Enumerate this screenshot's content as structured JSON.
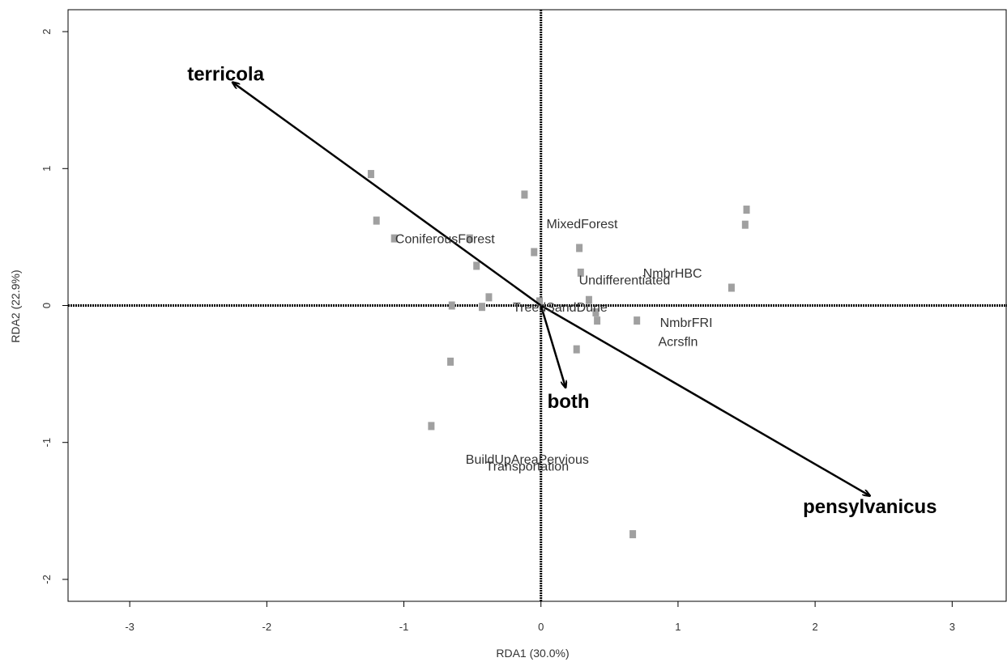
{
  "chart_data": {
    "type": "scatter",
    "xlabel": "RDA1 (30.0%)",
    "ylabel": "RDA2 (22.9%)",
    "xlim": [
      -3.45,
      3.4
    ],
    "ylim": [
      -2.16,
      2.16
    ],
    "x_ticks": [
      "-3",
      "-2",
      "-1",
      "0",
      "1",
      "2",
      "3"
    ],
    "y_ticks": [
      "-2",
      "-1",
      "0",
      "1",
      "2"
    ],
    "reference_lines": {
      "x": 0,
      "y": 0,
      "style": "dotted"
    },
    "grid": false,
    "colors": {
      "sites": "#a0a0a0",
      "arrows": "#000000",
      "env_labels": "#333333"
    },
    "sites": [
      {
        "x": -1.24,
        "y": 0.96
      },
      {
        "x": -1.2,
        "y": 0.62
      },
      {
        "x": -1.07,
        "y": 0.49
      },
      {
        "x": -0.52,
        "y": 0.49
      },
      {
        "x": -0.47,
        "y": 0.29
      },
      {
        "x": -0.38,
        "y": 0.06
      },
      {
        "x": -0.65,
        "y": 0.0
      },
      {
        "x": -0.43,
        "y": -0.01
      },
      {
        "x": -0.66,
        "y": -0.41
      },
      {
        "x": -0.8,
        "y": -0.88
      },
      {
        "x": -0.12,
        "y": 0.81
      },
      {
        "x": -0.05,
        "y": 0.39
      },
      {
        "x": -0.01,
        "y": 0.03
      },
      {
        "x": 0.28,
        "y": 0.42
      },
      {
        "x": 0.29,
        "y": 0.24
      },
      {
        "x": 0.35,
        "y": 0.04
      },
      {
        "x": 0.4,
        "y": -0.05
      },
      {
        "x": 0.41,
        "y": -0.11
      },
      {
        "x": 0.26,
        "y": -0.32
      },
      {
        "x": 0.7,
        "y": -0.11
      },
      {
        "x": 0.67,
        "y": -1.67
      },
      {
        "x": 1.39,
        "y": 0.13
      },
      {
        "x": 1.49,
        "y": 0.59
      },
      {
        "x": 1.5,
        "y": 0.7
      }
    ],
    "env_labels": [
      {
        "text": "MixedForest",
        "x": 0.3,
        "y": 0.6
      },
      {
        "text": "ConiferousForest",
        "x": -0.7,
        "y": 0.49
      },
      {
        "text": "NmbrHBC",
        "x": 0.96,
        "y": 0.24
      },
      {
        "text": "Undifferentiated",
        "x": 0.61,
        "y": 0.19
      },
      {
        "text": "TreedSandDune",
        "x": 0.14,
        "y": -0.01
      },
      {
        "text": "NmbrFRI",
        "x": 1.06,
        "y": -0.12
      },
      {
        "text": "Acrsfln",
        "x": 1.0,
        "y": -0.26
      },
      {
        "text": "BuildUpAreaPervious",
        "x": -0.1,
        "y": -1.12
      },
      {
        "text": "Transportation",
        "x": -0.1,
        "y": -1.17
      }
    ],
    "species": [
      {
        "name": "terricola",
        "x": -2.25,
        "y": 1.63,
        "label_x": -2.3,
        "label_y": 1.69
      },
      {
        "name": "both",
        "x": 0.18,
        "y": -0.6,
        "label_x": 0.2,
        "label_y": -0.7
      },
      {
        "name": "pensylvanicus",
        "x": 2.4,
        "y": -1.39,
        "label_x": 2.4,
        "label_y": -1.47
      }
    ]
  }
}
